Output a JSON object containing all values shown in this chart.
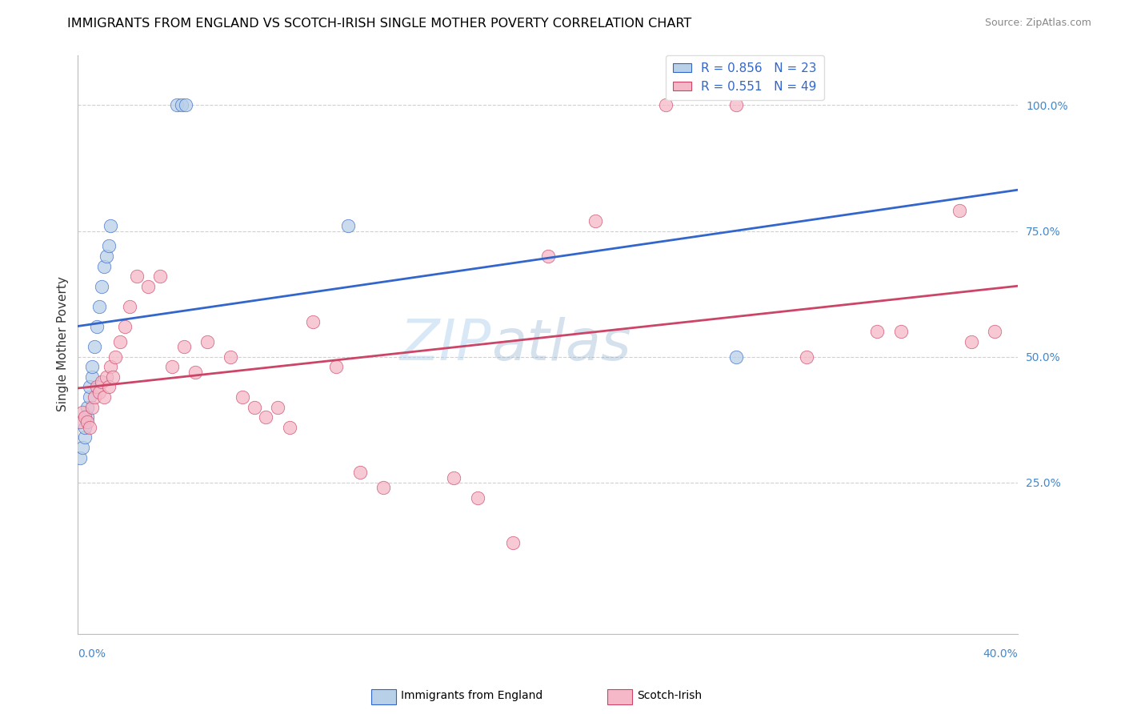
{
  "title": "IMMIGRANTS FROM ENGLAND VS SCOTCH-IRISH SINGLE MOTHER POVERTY CORRELATION CHART",
  "source": "Source: ZipAtlas.com",
  "ylabel": "Single Mother Poverty",
  "legend_label1": "Immigrants from England",
  "legend_label2": "Scotch-Irish",
  "R1": 0.856,
  "N1": 23,
  "R2": 0.551,
  "N2": 49,
  "color_blue": "#b8d0e8",
  "color_pink": "#f5b8c8",
  "line_blue": "#3366cc",
  "line_pink": "#cc4466",
  "watermark_zip": "ZIP",
  "watermark_atlas": "atlas",
  "xlim": [
    0.0,
    0.4
  ],
  "ylim": [
    -0.05,
    1.1
  ],
  "blue_x": [
    0.001,
    0.002,
    0.003,
    0.003,
    0.004,
    0.004,
    0.005,
    0.005,
    0.006,
    0.006,
    0.007,
    0.008,
    0.009,
    0.01,
    0.011,
    0.012,
    0.013,
    0.014,
    0.042,
    0.044,
    0.046,
    0.115,
    0.28
  ],
  "blue_y": [
    0.3,
    0.32,
    0.34,
    0.36,
    0.38,
    0.4,
    0.42,
    0.44,
    0.46,
    0.48,
    0.52,
    0.56,
    0.6,
    0.64,
    0.68,
    0.7,
    0.72,
    0.76,
    1.0,
    1.0,
    1.0,
    0.76,
    0.5
  ],
  "pink_x": [
    0.001,
    0.002,
    0.003,
    0.004,
    0.005,
    0.006,
    0.007,
    0.008,
    0.009,
    0.01,
    0.011,
    0.012,
    0.013,
    0.014,
    0.015,
    0.016,
    0.018,
    0.02,
    0.022,
    0.025,
    0.03,
    0.035,
    0.04,
    0.045,
    0.05,
    0.055,
    0.065,
    0.07,
    0.075,
    0.08,
    0.085,
    0.09,
    0.1,
    0.11,
    0.12,
    0.13,
    0.16,
    0.17,
    0.185,
    0.2,
    0.22,
    0.25,
    0.28,
    0.31,
    0.34,
    0.35,
    0.375,
    0.38,
    0.39
  ],
  "pink_y": [
    0.37,
    0.39,
    0.38,
    0.37,
    0.36,
    0.4,
    0.42,
    0.44,
    0.43,
    0.45,
    0.42,
    0.46,
    0.44,
    0.48,
    0.46,
    0.5,
    0.53,
    0.56,
    0.6,
    0.66,
    0.64,
    0.66,
    0.48,
    0.52,
    0.47,
    0.53,
    0.5,
    0.42,
    0.4,
    0.38,
    0.4,
    0.36,
    0.57,
    0.48,
    0.27,
    0.24,
    0.26,
    0.22,
    0.13,
    0.7,
    0.77,
    1.0,
    1.0,
    0.5,
    0.55,
    0.55,
    0.79,
    0.53,
    0.55
  ]
}
